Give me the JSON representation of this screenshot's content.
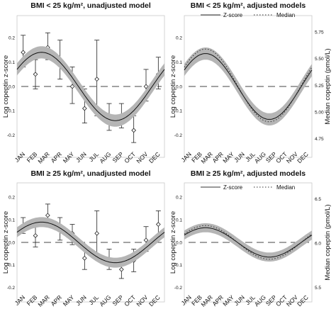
{
  "chart_data": [
    {
      "type": "line",
      "title": "BMI < 25 kg/m², unadjusted model",
      "ylabel": "Log copeptin z-score",
      "ylim": [
        -0.25,
        0.25
      ],
      "yticks": [
        "0.2",
        "0.1",
        "0.0",
        "-0.1",
        "-0.2"
      ],
      "ytick_values": [
        0.2,
        0.1,
        0.0,
        -0.1,
        -0.2
      ],
      "months": [
        "JAN",
        "FEB",
        "MAR",
        "APR",
        "MAY",
        "JUN",
        "JUL",
        "AUG",
        "SEP",
        "OCT",
        "NOV",
        "DEC"
      ],
      "series": [
        {
          "kind": "points",
          "values": [
            0.14,
            0.05,
            0.16,
            0.11,
            0.0,
            -0.09,
            0.03,
            -0.13,
            -0.12,
            -0.18,
            0.0,
            0.05
          ],
          "err_low": [
            0.08,
            -0.01,
            0.11,
            0.03,
            -0.07,
            -0.15,
            -0.12,
            -0.18,
            -0.17,
            -0.23,
            -0.06,
            -0.01
          ],
          "err_high": [
            0.21,
            0.11,
            0.22,
            0.19,
            0.08,
            -0.01,
            0.19,
            -0.07,
            -0.07,
            -0.12,
            0.07,
            0.12
          ]
        },
        {
          "kind": "fit",
          "mean": 0.0,
          "amplitude": 0.14,
          "peak_month": 2.5,
          "band": 0.025
        }
      ]
    },
    {
      "type": "line",
      "title": "BMI < 25 kg/m², adjusted models",
      "ylabel": "Log copeptin z-score",
      "ylabel_right": "Median copeptin (pmol/L)",
      "ylim": [
        -0.25,
        0.25
      ],
      "yticks": [
        "0.2",
        "0.1",
        "0.0",
        "-0.1",
        "-0.2"
      ],
      "ytick_values": [
        0.2,
        0.1,
        0.0,
        -0.1,
        -0.2
      ],
      "y2lim": [
        4.67,
        5.81
      ],
      "y2ticks": [
        "5.75",
        "5.50",
        "5.25",
        "5.00",
        "4.75"
      ],
      "y2tick_values": [
        5.75,
        5.5,
        5.25,
        5.0,
        4.75
      ],
      "months": [
        "JAN",
        "FEB",
        "MAR",
        "APR",
        "MAY",
        "JUN",
        "JUL",
        "AUG",
        "SEP",
        "OCT",
        "NOV",
        "DEC"
      ],
      "legend": [
        "Z-score",
        "Median"
      ],
      "series": [
        {
          "kind": "fit",
          "name": "Z-score",
          "mean": 0.0,
          "amplitude": 0.135,
          "peak_month": 2.5,
          "band": 0.025
        },
        {
          "kind": "dotted",
          "name": "Median",
          "axis": "right",
          "mean": 5.25,
          "amplitude": 0.34,
          "peak_month": 2.5
        }
      ]
    },
    {
      "type": "line",
      "title": "BMI ≥ 25 kg/m², unadjusted model",
      "ylabel": "Log copeptin z-score",
      "ylim": [
        -0.22,
        0.22
      ],
      "yticks": [
        "0.2",
        "0.1",
        "0.0",
        "-0.1",
        "-0.2"
      ],
      "ytick_values": [
        0.2,
        0.1,
        0.0,
        -0.1,
        -0.2
      ],
      "months": [
        "JAN",
        "FEB",
        "MAR",
        "APR",
        "MAY",
        "JUN",
        "JUL",
        "AUG",
        "SEP",
        "OCT",
        "NOV",
        "DEC"
      ],
      "series": [
        {
          "kind": "points",
          "values": [
            0.07,
            0.03,
            0.12,
            0.06,
            0.04,
            -0.07,
            0.04,
            -0.08,
            -0.12,
            -0.08,
            0.01,
            0.08
          ],
          "err_low": [
            0.04,
            -0.02,
            0.07,
            0.01,
            -0.01,
            -0.12,
            -0.06,
            -0.12,
            -0.16,
            -0.13,
            -0.04,
            0.02
          ],
          "err_high": [
            0.11,
            0.08,
            0.17,
            0.11,
            0.08,
            -0.02,
            0.14,
            -0.03,
            -0.08,
            -0.03,
            0.07,
            0.14
          ]
        },
        {
          "kind": "fit",
          "mean": 0.0,
          "amplitude": 0.09,
          "peak_month": 2.5,
          "band": 0.022
        }
      ]
    },
    {
      "type": "line",
      "title": "BMI ≥ 25 kg/m², adjusted models",
      "ylabel": "Log copeptin z-score",
      "ylabel_right": "Median copeptin (pmol/L)",
      "ylim": [
        -0.22,
        0.22
      ],
      "yticks": [
        "0.2",
        "0.1",
        "0.0",
        "-0.1",
        "-0.2"
      ],
      "ytick_values": [
        0.2,
        0.1,
        0.0,
        -0.1,
        -0.2
      ],
      "y2lim": [
        5.45,
        6.57
      ],
      "y2ticks": [
        "6.5",
        "6.0",
        "5.5"
      ],
      "y2tick_values": [
        6.5,
        6.0,
        5.5
      ],
      "months": [
        "JAN",
        "FEB",
        "MAR",
        "APR",
        "MAY",
        "JUN",
        "JUL",
        "AUG",
        "SEP",
        "OCT",
        "NOV",
        "DEC"
      ],
      "legend": [
        "Z-score",
        "Median"
      ],
      "series": [
        {
          "kind": "fit",
          "name": "Z-score",
          "mean": 0.0,
          "amplitude": 0.065,
          "peak_month": 2.5,
          "band": 0.02
        },
        {
          "kind": "dotted",
          "name": "Median",
          "axis": "right",
          "mean": 6.01,
          "amplitude": 0.19,
          "peak_month": 2.5
        }
      ]
    }
  ]
}
